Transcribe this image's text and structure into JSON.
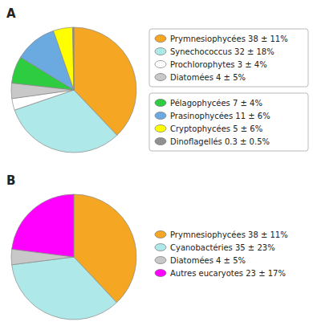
{
  "chart_data": [
    {
      "type": "pie",
      "title": "A",
      "categories": [
        "Prymnesiophycées 38 ± 11%",
        "Synechococcus 32 ± 18%",
        "Prochlorophytes 3 ± 4%",
        "Diatomées 4 ± 5%",
        "Pélagophycées 7 ± 4%",
        "Prasinophycées 11 ± 6%",
        "Cryptophycées 5 ± 6%",
        "Dinoflagellés 0.3 ± 0.5%"
      ],
      "values": [
        38,
        32,
        3,
        4,
        7,
        11,
        5,
        0.3
      ],
      "colors": [
        "#F5A623",
        "#AEE8E8",
        "#FFFFFF",
        "#C8C8C8",
        "#2ECC40",
        "#6AAAE0",
        "#FFFF00",
        "#909090"
      ]
    },
    {
      "type": "pie",
      "title": "B",
      "categories": [
        "Prymnesiophycées 38 ± 11%",
        "Cyanobactéries 35 ± 23%",
        "Diatomées 4 ± 5%",
        "Autres eucaryotes 23 ± 17%"
      ],
      "values": [
        38,
        35,
        4,
        23
      ],
      "colors": [
        "#F5A623",
        "#AEE8E8",
        "#C8C8C8",
        "#FF00FF"
      ]
    }
  ]
}
